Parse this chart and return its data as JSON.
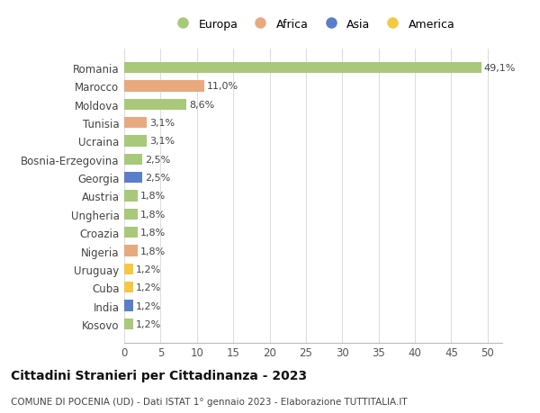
{
  "categories": [
    "Romania",
    "Marocco",
    "Moldova",
    "Tunisia",
    "Ucraina",
    "Bosnia-Erzegovina",
    "Georgia",
    "Austria",
    "Ungheria",
    "Croazia",
    "Nigeria",
    "Uruguay",
    "Cuba",
    "India",
    "Kosovo"
  ],
  "values": [
    49.1,
    11.0,
    8.6,
    3.1,
    3.1,
    2.5,
    2.5,
    1.8,
    1.8,
    1.8,
    1.8,
    1.2,
    1.2,
    1.2,
    1.2
  ],
  "labels": [
    "49,1%",
    "11,0%",
    "8,6%",
    "3,1%",
    "3,1%",
    "2,5%",
    "2,5%",
    "1,8%",
    "1,8%",
    "1,8%",
    "1,8%",
    "1,2%",
    "1,2%",
    "1,2%",
    "1,2%"
  ],
  "colors": [
    "#a8c87a",
    "#e8a97e",
    "#a8c87a",
    "#e8a97e",
    "#a8c87a",
    "#a8c87a",
    "#5b7ec9",
    "#a8c87a",
    "#a8c87a",
    "#a8c87a",
    "#e8a97e",
    "#f5c842",
    "#f5c842",
    "#5b7ec9",
    "#a8c87a"
  ],
  "legend_labels": [
    "Europa",
    "Africa",
    "Asia",
    "America"
  ],
  "legend_colors": [
    "#a8c87a",
    "#e8a97e",
    "#5b7ec9",
    "#f5c842"
  ],
  "xlim": [
    0,
    52
  ],
  "xticks": [
    0,
    5,
    10,
    15,
    20,
    25,
    30,
    35,
    40,
    45,
    50
  ],
  "title": "Cittadini Stranieri per Cittadinanza - 2023",
  "subtitle": "COMUNE DI POCENIA (UD) - Dati ISTAT 1° gennaio 2023 - Elaborazione TUTTITALIA.IT",
  "background_color": "#ffffff",
  "grid_color": "#dddddd",
  "bar_height": 0.6
}
